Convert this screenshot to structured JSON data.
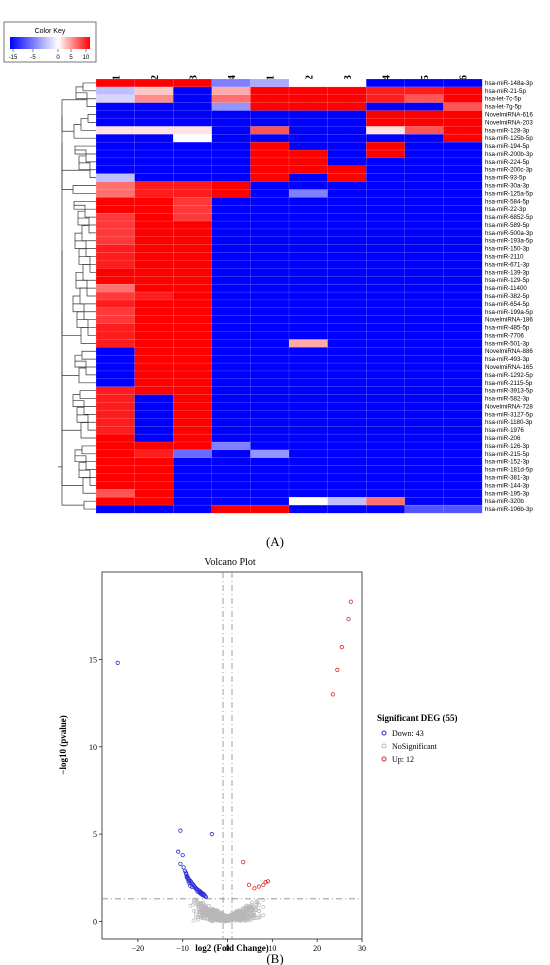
{
  "panel_a": {
    "label": "(A)",
    "color_key": {
      "title": "Color Key",
      "ticks": [
        "-15",
        "-5",
        "0",
        "5",
        "10"
      ],
      "low_color": "#0000ff",
      "mid_color": "#ffffff",
      "high_color": "#ff0000"
    },
    "columns": [
      "Low radon 1",
      "Low radon 2",
      "Low radon 3",
      "Low radon 4",
      "High radon 1",
      "High radon 2",
      "High radon 3",
      "High radon 4",
      "High radon 5",
      "High radon 6"
    ],
    "rows": [
      "hsa-miR-148a-3p",
      "hsa-miR-21-5p",
      "hsa-let-7c-5p",
      "hsa-let-7g-5p",
      "NovelmiRNA-616",
      "NovelmiRNA-203",
      "hsa-miR-128-3p",
      "hsa-miR-125b-5p",
      "hsa-miR-194-5p",
      "hsa-miR-200b-3p",
      "hsa-miR-224-5p",
      "hsa-miR-200c-3p",
      "hsa-miR-93-5p",
      "hsa-miR-30a-3p",
      "hsa-miR-125a-5p",
      "hsa-miR-584-5p",
      "hsa-miR-22-3p",
      "hsa-miR-6852-5p",
      "hsa-miR-589-5p",
      "hsa-miR-500a-3p",
      "hsa-miR-193a-5p",
      "hsa-miR-150-3p",
      "hsa-miR-2110",
      "hsa-miR-671-3p",
      "hsa-miR-139-3p",
      "hsa-miR-129-5p",
      "hsa-miR-11400",
      "hsa-miR-382-5p",
      "hsa-miR-654-5p",
      "hsa-miR-199a-5p",
      "NovelmiRNA-186",
      "hsa-miR-485-5p",
      "hsa-miR-7706",
      "hsa-miR-501-3p",
      "NovelmiRNA-886",
      "hsa-miR-493-3p",
      "NovelmiRNA-165",
      "hsa-miR-1292-5p",
      "hsa-miR-2115-5p",
      "hsa-miR-3913-5p",
      "hsa-miR-582-3p",
      "NovelmiRNA-728",
      "hsa-miR-3127-5p",
      "hsa-miR-1180-3p",
      "hsa-miR-1976",
      "hsa-miR-206",
      "hsa-miR-126-3p",
      "hsa-miR-215-5p",
      "hsa-miR-152-3p",
      "hsa-miR-181d-5p",
      "hsa-miR-381-3p",
      "hsa-miR-144-3p",
      "hsa-miR-195-3p",
      "hsa-miR-320b",
      "hsa-miR-106b-3p"
    ],
    "cell_levels_note": "",
    "matrix": [
      [
        9,
        9,
        9,
        -6,
        -4,
        0,
        0,
        -12,
        -12,
        -12
      ],
      [
        -3,
        2,
        -12,
        3,
        9,
        9,
        9,
        8,
        8,
        9
      ],
      [
        -2,
        4,
        -12,
        5,
        9,
        9,
        9,
        8,
        6,
        9
      ],
      [
        -12,
        -12,
        -12,
        -5,
        9,
        9,
        9,
        -12,
        -12,
        6
      ],
      [
        -12,
        -12,
        -12,
        -12,
        -12,
        -12,
        -12,
        9,
        9,
        9
      ],
      [
        -12,
        -12,
        -12,
        -12,
        -12,
        -12,
        -12,
        9,
        9,
        9
      ],
      [
        1,
        1,
        1,
        -12,
        6,
        -12,
        -12,
        1,
        6,
        9
      ],
      [
        -12,
        -12,
        0,
        -12,
        -12,
        -12,
        -12,
        -12,
        -12,
        9
      ],
      [
        -12,
        -12,
        -12,
        -12,
        9,
        -12,
        -12,
        9,
        -12,
        -12
      ],
      [
        -12,
        -12,
        -12,
        -12,
        9,
        9,
        -12,
        9,
        -12,
        -12
      ],
      [
        -12,
        -12,
        -12,
        -12,
        9,
        9,
        -12,
        -12,
        -12,
        -12
      ],
      [
        -12,
        -12,
        -12,
        -12,
        9,
        9,
        9,
        -12,
        -12,
        -12
      ],
      [
        -3,
        -12,
        -12,
        -12,
        9,
        -12,
        9,
        -12,
        -12,
        -12
      ],
      [
        5,
        8,
        8,
        9,
        -12,
        -12,
        -12,
        -12,
        -12,
        -12
      ],
      [
        5,
        8,
        8,
        9,
        -12,
        -6,
        -12,
        -12,
        -12,
        -12
      ],
      [
        9,
        9,
        7,
        -12,
        -12,
        -12,
        -12,
        -12,
        -12,
        -12
      ],
      [
        9,
        9,
        7,
        -12,
        -12,
        -12,
        -12,
        -12,
        -12,
        -12
      ],
      [
        7,
        9,
        7,
        -12,
        -12,
        -12,
        -12,
        -12,
        -12,
        -12
      ],
      [
        7,
        9,
        9,
        -12,
        -12,
        -12,
        -12,
        -12,
        -12,
        -12
      ],
      [
        7,
        9,
        9,
        -12,
        -12,
        -12,
        -12,
        -12,
        -12,
        -12
      ],
      [
        7,
        9,
        9,
        -12,
        -12,
        -12,
        -12,
        -12,
        -12,
        -12
      ],
      [
        8,
        9,
        9,
        -12,
        -12,
        -12,
        -12,
        -12,
        -12,
        -12
      ],
      [
        8,
        9,
        9,
        -12,
        -12,
        -12,
        -12,
        -12,
        -12,
        -12
      ],
      [
        8,
        9,
        9,
        -12,
        -12,
        -12,
        -12,
        -12,
        -12,
        -12
      ],
      [
        9,
        9,
        9,
        -12,
        -12,
        -12,
        -12,
        -12,
        -12,
        -12
      ],
      [
        9,
        9,
        9,
        -12,
        -12,
        -12,
        -12,
        -12,
        -12,
        -12
      ],
      [
        5,
        9,
        9,
        -12,
        -12,
        -12,
        -12,
        -12,
        -12,
        -12
      ],
      [
        7,
        8,
        9,
        -12,
        -12,
        -12,
        -12,
        -12,
        -12,
        -12
      ],
      [
        8,
        9,
        9,
        -12,
        -12,
        -12,
        -12,
        -12,
        -12,
        -12
      ],
      [
        7,
        9,
        9,
        -12,
        -12,
        -12,
        -12,
        -12,
        -12,
        -12
      ],
      [
        7,
        9,
        9,
        -12,
        -12,
        -12,
        -12,
        -12,
        -12,
        -12
      ],
      [
        8,
        9,
        9,
        -12,
        -12,
        -12,
        -12,
        -12,
        -12,
        -12
      ],
      [
        8,
        9,
        9,
        -12,
        -12,
        -12,
        -12,
        -12,
        -12,
        -12
      ],
      [
        8,
        9,
        9,
        -12,
        -12,
        3,
        -12,
        -12,
        -12,
        -12
      ],
      [
        -12,
        9,
        9,
        -12,
        -12,
        -12,
        -12,
        -12,
        -12,
        -12
      ],
      [
        -12,
        9,
        9,
        -12,
        -12,
        -12,
        -12,
        -12,
        -12,
        -12
      ],
      [
        -12,
        9,
        9,
        -12,
        -12,
        -12,
        -12,
        -12,
        -12,
        -12
      ],
      [
        -12,
        9,
        9,
        -12,
        -12,
        -12,
        -12,
        -12,
        -12,
        -12
      ],
      [
        -12,
        9,
        9,
        -12,
        -12,
        -12,
        -12,
        -12,
        -12,
        -12
      ],
      [
        8,
        9,
        9,
        -12,
        -12,
        -12,
        -12,
        -12,
        -12,
        -12
      ],
      [
        8,
        -12,
        9,
        -12,
        -12,
        -12,
        -12,
        -12,
        -12,
        -12
      ],
      [
        8,
        -12,
        9,
        -12,
        -12,
        -12,
        -12,
        -12,
        -12,
        -12
      ],
      [
        8,
        -12,
        9,
        -12,
        -12,
        -12,
        -12,
        -12,
        -12,
        -12
      ],
      [
        8,
        -12,
        9,
        -12,
        -12,
        -12,
        -12,
        -12,
        -12,
        -12
      ],
      [
        8,
        -12,
        9,
        -12,
        -12,
        -12,
        -12,
        -12,
        -12,
        -12
      ],
      [
        9,
        -12,
        9,
        -12,
        -12,
        -12,
        -12,
        -12,
        -12,
        -12
      ],
      [
        9,
        9,
        9,
        -6,
        -12,
        -12,
        -12,
        -12,
        -12,
        -12
      ],
      [
        9,
        8,
        -7,
        -12,
        -5,
        -12,
        -12,
        -12,
        -12,
        -12
      ],
      [
        9,
        9,
        -12,
        -12,
        -12,
        -12,
        -12,
        -12,
        -12,
        -12
      ],
      [
        9,
        9,
        -12,
        -12,
        -12,
        -12,
        -12,
        -12,
        -12,
        -12
      ],
      [
        9,
        9,
        -12,
        -12,
        -12,
        -12,
        -12,
        -12,
        -12,
        -12
      ],
      [
        9,
        9,
        -12,
        -12,
        -12,
        -12,
        -12,
        -12,
        -12,
        -12
      ],
      [
        6,
        9,
        -12,
        -12,
        -12,
        -12,
        -12,
        -12,
        -12,
        -12
      ],
      [
        9,
        9,
        -12,
        -12,
        -12,
        0,
        -3,
        5,
        -12,
        -12
      ],
      [
        -12,
        -12,
        -12,
        9,
        9,
        -12,
        -12,
        -12,
        -8,
        -8
      ]
    ]
  },
  "panel_b": {
    "label": "(B)",
    "chart_data": {
      "type": "scatter",
      "title": "Volcano Plot",
      "xlabel": "log2 (Fold Change)",
      "ylabel": "−log10 (pvalue)",
      "xlim": [
        -28,
        30
      ],
      "ylim": [
        -1,
        20
      ],
      "x_ticks": [
        "−20",
        "−10",
        "0",
        "10",
        "20",
        "30"
      ],
      "y_ticks": [
        "0",
        "5",
        "10",
        "15"
      ],
      "thresholds": {
        "p_line_y": 1.3,
        "fc_lines_x": [
          -1,
          1
        ]
      },
      "legend": {
        "title": "Significant DEG (55)",
        "position": "right",
        "entries": [
          "Down: 43",
          "NoSignificant",
          "Up: 12"
        ]
      },
      "colors": {
        "down": "#2b2bd9",
        "nosig": "#b8b8b8",
        "up": "#e02020"
      },
      "down_points": [
        [
          -24.5,
          14.8
        ],
        [
          -10.5,
          5.2
        ],
        [
          -3.5,
          5.0
        ],
        [
          -11,
          4.0
        ],
        [
          -10,
          3.8
        ],
        [
          -10.5,
          3.3
        ],
        [
          -9.8,
          3.1
        ],
        [
          -9.5,
          2.9
        ],
        [
          -9.2,
          2.7
        ],
        [
          -9,
          2.6
        ],
        [
          -8.8,
          2.5
        ],
        [
          -8.6,
          2.4
        ],
        [
          -8.4,
          2.35
        ],
        [
          -8.2,
          2.3
        ],
        [
          -8,
          2.2
        ],
        [
          -7.8,
          2.15
        ],
        [
          -9.1,
          2.55
        ],
        [
          -8.9,
          2.45
        ],
        [
          -8.7,
          2.3
        ],
        [
          -8.5,
          2.2
        ],
        [
          -7.6,
          2.1
        ],
        [
          -7.4,
          2.0
        ],
        [
          -7.2,
          1.95
        ],
        [
          -7,
          1.9
        ],
        [
          -6.8,
          1.85
        ],
        [
          -6.5,
          1.8
        ],
        [
          -6.2,
          1.75
        ],
        [
          -6,
          1.7
        ],
        [
          -5.8,
          1.65
        ],
        [
          -5.5,
          1.6
        ],
        [
          -5.2,
          1.55
        ],
        [
          -9.3,
          2.8
        ],
        [
          -8.3,
          2.05
        ],
        [
          -7.9,
          1.98
        ],
        [
          -7.1,
          1.88
        ],
        [
          -6.7,
          1.72
        ],
        [
          -6.4,
          1.68
        ],
        [
          -6.1,
          1.62
        ],
        [
          -5.9,
          1.58
        ],
        [
          -5.6,
          1.52
        ],
        [
          -5.3,
          1.48
        ],
        [
          -5,
          1.45
        ],
        [
          -4.8,
          1.4
        ]
      ],
      "up_points": [
        [
          27.5,
          18.3
        ],
        [
          27,
          17.3
        ],
        [
          25.5,
          15.7
        ],
        [
          24.5,
          14.4
        ],
        [
          23.5,
          13.0
        ],
        [
          3.5,
          3.4
        ],
        [
          4.8,
          2.1
        ],
        [
          6,
          1.9
        ],
        [
          7,
          2.0
        ],
        [
          8,
          2.1
        ],
        [
          8.5,
          2.25
        ],
        [
          9,
          2.3
        ]
      ],
      "nosig_count": 800
    }
  }
}
